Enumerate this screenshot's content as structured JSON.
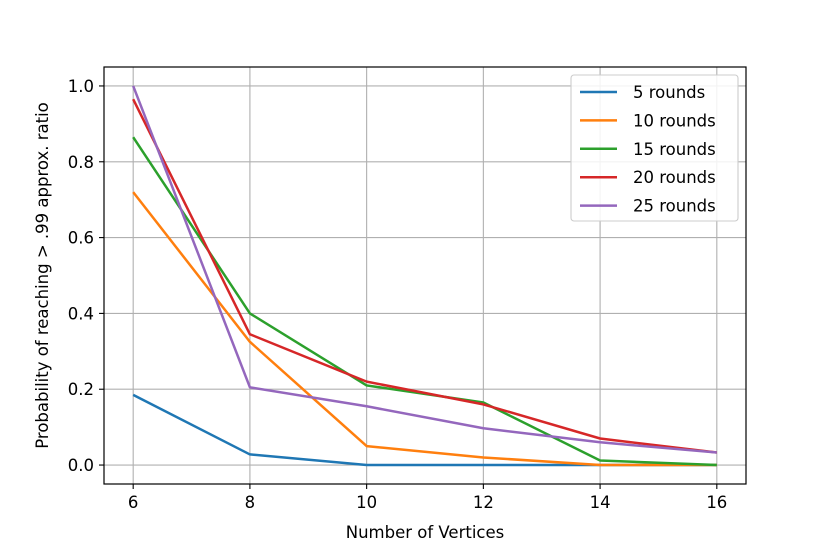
{
  "chart_data": {
    "type": "line",
    "title": "",
    "xlabel": "Number of Vertices",
    "ylabel": "Probability of reaching > .99 approx. ratio",
    "x": [
      6,
      8,
      10,
      12,
      14,
      16
    ],
    "x_ticks": [
      "6",
      "8",
      "10",
      "12",
      "14",
      "16"
    ],
    "y_ticks": [
      "0.0",
      "0.2",
      "0.4",
      "0.6",
      "0.8",
      "1.0"
    ],
    "xlim": [
      5.5,
      16.5
    ],
    "ylim": [
      -0.05,
      1.05
    ],
    "grid": true,
    "legend_position": "top-right",
    "series": [
      {
        "name": "5 rounds",
        "color": "#1f77b4",
        "values": [
          0.185,
          0.028,
          0.0,
          0.0,
          0.0,
          0.0
        ]
      },
      {
        "name": "10 rounds",
        "color": "#ff7f0e",
        "values": [
          0.72,
          0.325,
          0.05,
          0.02,
          0.0,
          0.0
        ]
      },
      {
        "name": "15 rounds",
        "color": "#2ca02c",
        "values": [
          0.865,
          0.4,
          0.21,
          0.165,
          0.012,
          0.0
        ]
      },
      {
        "name": "20 rounds",
        "color": "#d62728",
        "values": [
          0.965,
          0.345,
          0.22,
          0.16,
          0.07,
          0.033
        ]
      },
      {
        "name": "25 rounds",
        "color": "#9467bd",
        "values": [
          1.0,
          0.205,
          0.155,
          0.097,
          0.06,
          0.033
        ]
      }
    ]
  }
}
